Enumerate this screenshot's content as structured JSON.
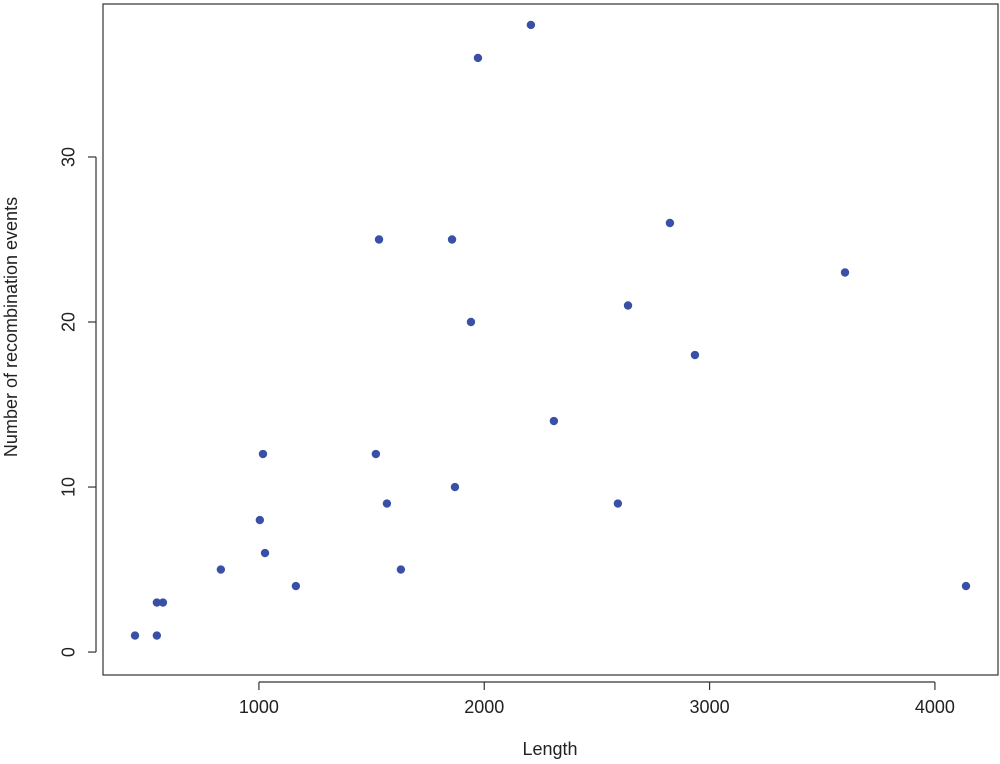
{
  "chart_data": {
    "type": "scatter",
    "x_label": "Length",
    "y_label": "Number of recombination events",
    "color": "#3a4fa6",
    "x": [
      450,
      547,
      547,
      574,
      831,
      1004,
      1018,
      1027,
      1164,
      1519,
      1533,
      1568,
      1630,
      1857,
      1870,
      1941,
      1972,
      2207,
      2309,
      2593,
      2638,
      2824,
      2935,
      3601,
      4138
    ],
    "values": [
      1,
      1,
      3,
      3,
      5,
      8,
      12,
      6,
      4,
      12,
      25,
      9,
      5,
      25,
      10,
      20,
      36,
      38,
      14,
      9,
      21,
      26,
      18,
      23,
      4
    ],
    "xlim": [
      308,
      4280
    ],
    "ylim": [
      -1.39,
      39.27
    ],
    "xticks": [
      1000,
      2000,
      3000,
      4000
    ],
    "yticks": [
      0,
      10,
      20,
      30
    ]
  }
}
